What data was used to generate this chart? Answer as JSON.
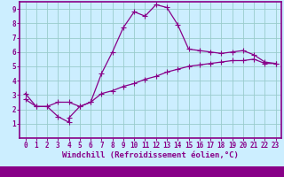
{
  "line1_x": [
    0,
    1,
    2,
    3,
    4,
    4,
    5,
    6,
    7,
    8,
    9,
    10,
    11,
    12,
    13,
    14,
    15,
    16,
    17,
    18,
    19,
    20,
    21,
    22,
    23
  ],
  "line1_y": [
    3.1,
    2.2,
    2.2,
    1.5,
    1.1,
    1.4,
    2.2,
    2.5,
    4.5,
    6.0,
    7.7,
    8.8,
    8.5,
    9.3,
    9.1,
    7.9,
    6.2,
    6.1,
    6.0,
    5.9,
    6.0,
    6.1,
    5.8,
    5.3,
    5.2
  ],
  "line2_x": [
    0,
    1,
    2,
    3,
    4,
    5,
    6,
    7,
    8,
    9,
    10,
    11,
    12,
    13,
    14,
    15,
    16,
    17,
    18,
    19,
    20,
    21,
    22,
    23
  ],
  "line2_y": [
    2.7,
    2.2,
    2.2,
    2.5,
    2.5,
    2.2,
    2.5,
    3.1,
    3.3,
    3.6,
    3.8,
    4.1,
    4.3,
    4.6,
    4.8,
    5.0,
    5.1,
    5.2,
    5.3,
    5.4,
    5.4,
    5.5,
    5.2,
    5.2
  ],
  "line_color": "#880088",
  "bg_color": "#cceeff",
  "grid_color": "#99cccc",
  "xlabel": "Windchill (Refroidissement éolien,°C)",
  "xlim": [
    -0.5,
    23.5
  ],
  "ylim": [
    0,
    9.5
  ],
  "xticks": [
    0,
    1,
    2,
    3,
    4,
    5,
    6,
    7,
    8,
    9,
    10,
    11,
    12,
    13,
    14,
    15,
    16,
    17,
    18,
    19,
    20,
    21,
    22,
    23
  ],
  "yticks": [
    1,
    2,
    3,
    4,
    5,
    6,
    7,
    8,
    9
  ],
  "marker": "+",
  "markersize": 4,
  "linewidth": 0.9,
  "xlabel_fontsize": 6.5,
  "tick_fontsize": 5.5,
  "border_color": "#880088",
  "bottom_bar_color": "#880088"
}
